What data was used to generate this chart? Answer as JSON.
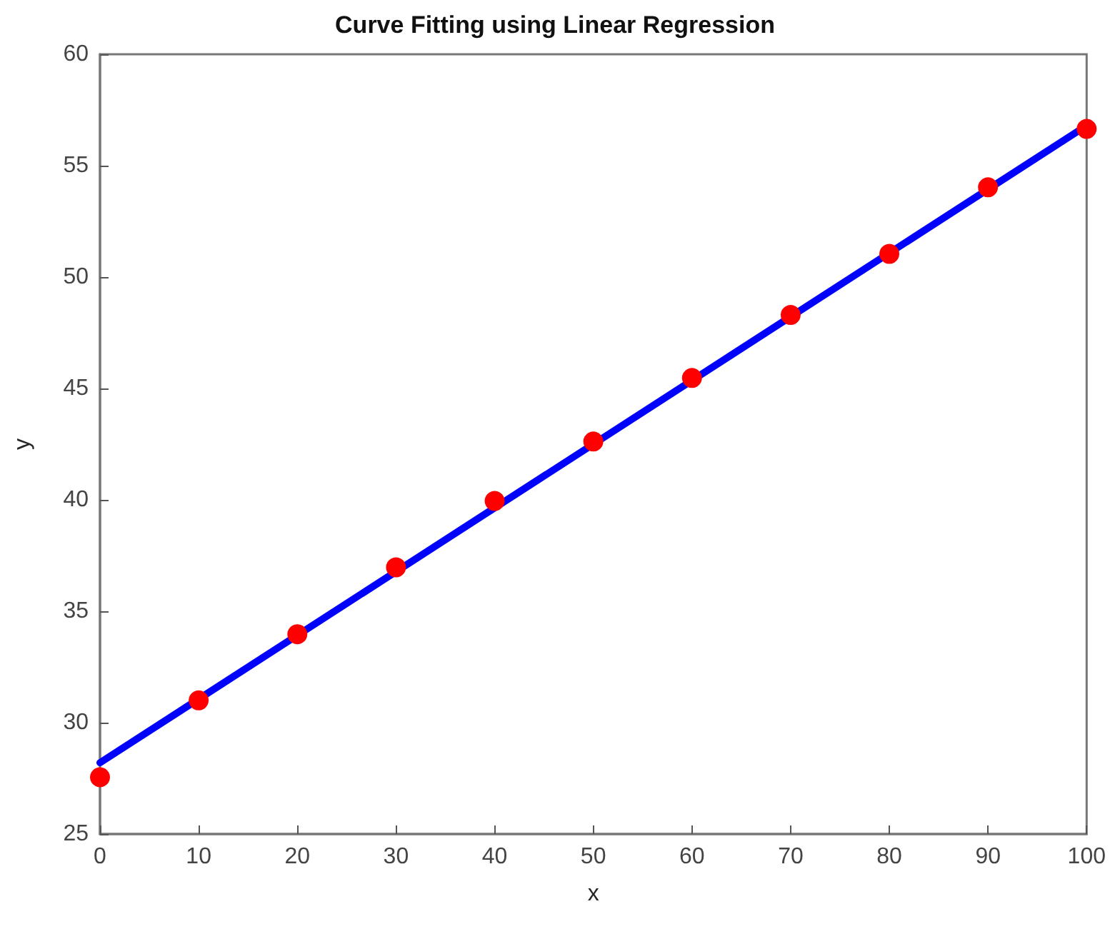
{
  "chart_data": {
    "type": "scatter",
    "title": "Curve Fitting using Linear Regression",
    "xlabel": "x",
    "ylabel": "y",
    "xlim": [
      0,
      100
    ],
    "xticks": [
      0,
      10,
      20,
      30,
      40,
      50,
      60,
      70,
      80,
      90,
      100
    ],
    "ylim": [
      25,
      60
    ],
    "yticks": [
      25,
      30,
      35,
      40,
      45,
      50,
      55,
      60
    ],
    "grid": false,
    "series": [
      {
        "type": "line",
        "color": "#0000ff",
        "marker": "none",
        "line_style": "solid",
        "x": [
          0,
          100
        ],
        "values": [
          28.2,
          56.8
        ]
      },
      {
        "color": "#ff0000",
        "marker": "circle",
        "x": [
          0,
          10,
          20,
          30,
          40,
          50,
          60,
          70,
          80,
          90,
          100
        ],
        "values": [
          27.55,
          31.0,
          33.97,
          36.97,
          39.95,
          42.62,
          45.47,
          48.3,
          51.04,
          54.03,
          56.65
        ]
      }
    ]
  }
}
